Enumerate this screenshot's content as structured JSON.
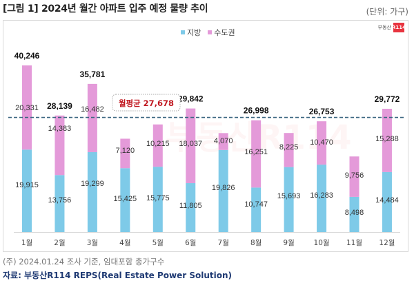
{
  "header": {
    "title": "[그림 1] 2024년 월간 아파트 입주 예정 물량 추이",
    "unit": "(단위: 가구)"
  },
  "brand": {
    "text": "부동산",
    "logo": "R114",
    "watermark": "부동산R114"
  },
  "footer": {
    "note": "(주) 2024.01.24 조사 기준, 임대포함 총가구수",
    "source": "자료: 부동산R114 REPS(Real Estate Power Solution)"
  },
  "colors": {
    "local": "#7ecae8",
    "capital": "#e49ad9",
    "avg_line": "#3b6680",
    "avg_label": "#c0171f"
  },
  "chart_data": {
    "type": "bar",
    "stacked": true,
    "title": "2024년 월간 아파트 입주 예정 물량 추이",
    "xlabel": "",
    "ylabel": "",
    "unit": "가구",
    "categories": [
      "1월",
      "2월",
      "3월",
      "4월",
      "5월",
      "6월",
      "7월",
      "8월",
      "9월",
      "10월",
      "11월",
      "12월"
    ],
    "series": [
      {
        "name": "지방",
        "color": "#7ecae8",
        "values": [
          19915,
          13756,
          19299,
          15425,
          15775,
          11805,
          19826,
          10747,
          15693,
          16283,
          8498,
          14484
        ]
      },
      {
        "name": "수도권",
        "color": "#e49ad9",
        "values": [
          20331,
          14383,
          16482,
          7120,
          10215,
          18037,
          4070,
          16251,
          8225,
          10470,
          9756,
          15288
        ]
      }
    ],
    "totals": [
      40246,
      28139,
      35781,
      22545,
      25990,
      29842,
      23896,
      26998,
      23918,
      26753,
      18254,
      29772
    ],
    "total_labels_shown": [
      "40,246",
      "28,139",
      "35,781",
      null,
      null,
      "29,842",
      null,
      "26,998",
      null,
      "26,753",
      null,
      "29,772"
    ],
    "average": {
      "label": "월평균 27,678",
      "value": 27678
    },
    "legend": [
      "지방",
      "수도권"
    ],
    "legend_position": "top-center",
    "ylim": [
      0,
      42000
    ],
    "grid": false
  }
}
